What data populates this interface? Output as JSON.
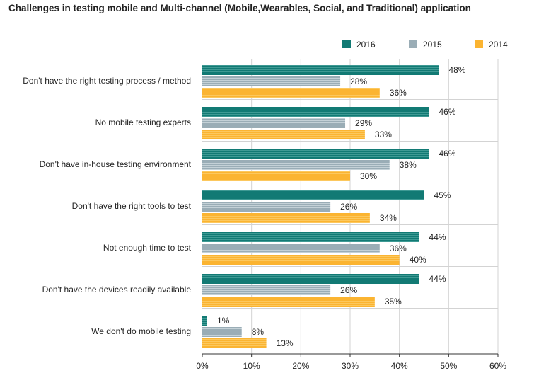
{
  "chart_data": {
    "type": "bar",
    "orientation": "horizontal",
    "title": "Challenges in testing mobile and Multi-channel (Mobile,Wearables, Social, and Traditional) application",
    "xlabel": "",
    "ylabel": "",
    "xlim": [
      0,
      60
    ],
    "xticks": [
      0,
      10,
      20,
      30,
      40,
      50,
      60
    ],
    "xtick_labels": [
      "0%",
      "10%",
      "20%",
      "30%",
      "40%",
      "50%",
      "60%"
    ],
    "grid": "vertical",
    "legend_position": "top-right",
    "categories": [
      "Don't have the right testing process / method",
      "No mobile testing experts",
      "Don't have in-house testing environment",
      "Don't have the right tools to test",
      "Not enough time to test",
      "Don't have the devices readily available",
      "We don't do mobile testing"
    ],
    "series": [
      {
        "name": "2016",
        "color": "#127a74",
        "values": [
          48,
          46,
          46,
          45,
          44,
          44,
          1
        ],
        "labels": [
          "48%",
          "46%",
          "46%",
          "45%",
          "44%",
          "44%",
          "1%"
        ]
      },
      {
        "name": "2015",
        "color": "#9aadb6",
        "values": [
          28,
          29,
          38,
          26,
          36,
          26,
          8
        ],
        "labels": [
          "28%",
          "29%",
          "38%",
          "26%",
          "36%",
          "26%",
          "8%"
        ]
      },
      {
        "name": "2014",
        "color": "#fbb431",
        "values": [
          36,
          33,
          30,
          34,
          40,
          35,
          13
        ],
        "labels": [
          "36%",
          "33%",
          "30%",
          "34%",
          "40%",
          "35%",
          "13%"
        ]
      }
    ]
  }
}
